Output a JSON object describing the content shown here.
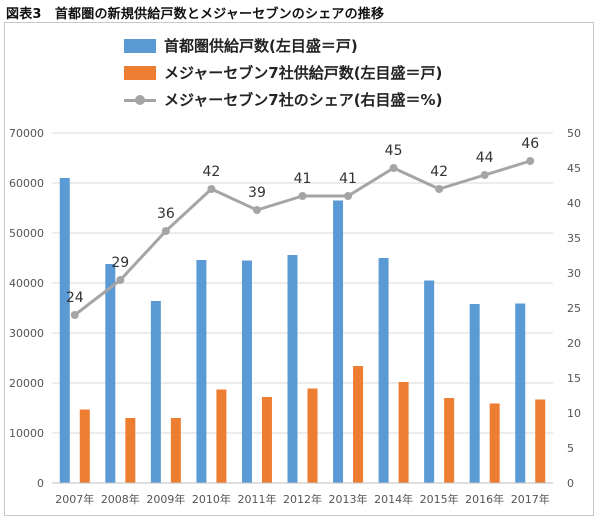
{
  "figure_title": "図表3　首都圏の新規供給戸数とメジャーセブンのシェアの推移",
  "colors": {
    "capital": "#5b9bd5",
    "seven": "#ed7d31",
    "share": "#a5a5a5",
    "grid": "#d9d9d9"
  },
  "chart_data": {
    "type": "bar",
    "categories": [
      "2007年",
      "2008年",
      "2009年",
      "2010年",
      "2011年",
      "2012年",
      "2013年",
      "2014年",
      "2015年",
      "2016年",
      "2017年"
    ],
    "series": [
      {
        "name": "首都圏供給戸数(左目盛＝戸)",
        "type": "bar",
        "axis": "left",
        "values": [
          61000,
          43800,
          36400,
          44600,
          44500,
          45600,
          56500,
          45000,
          40500,
          35800,
          35900
        ]
      },
      {
        "name": "メジャーセブン7社供給戸数(左目盛＝戸)",
        "type": "bar",
        "axis": "left",
        "values": [
          14700,
          13000,
          13000,
          18700,
          17200,
          18900,
          23400,
          20200,
          17000,
          15900,
          16700
        ]
      },
      {
        "name": "メジャーセブン7社のシェア(右目盛＝%)",
        "type": "line",
        "axis": "right",
        "values": [
          24,
          29,
          36,
          42,
          39,
          41,
          41,
          45,
          42,
          44,
          46
        ],
        "labels": [
          "24",
          "29",
          "36",
          "42",
          "39",
          "41",
          "41",
          "45",
          "42",
          "44",
          "46"
        ]
      }
    ],
    "y_left": {
      "ylim": [
        0,
        70000
      ],
      "ticks": [
        "0",
        "10000",
        "20000",
        "30000",
        "40000",
        "50000",
        "60000",
        "70000"
      ]
    },
    "y_right": {
      "ylim": [
        0,
        50
      ],
      "ticks": [
        "0",
        "5",
        "10",
        "15",
        "20",
        "25",
        "30",
        "35",
        "40",
        "45",
        "50"
      ]
    },
    "legend": "top"
  }
}
